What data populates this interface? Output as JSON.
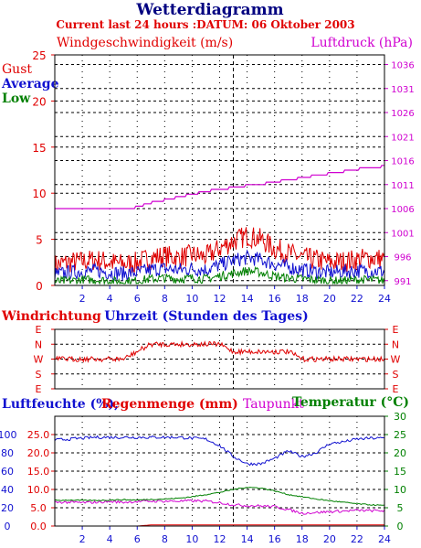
{
  "header": {
    "title": "Wetterdiagramm",
    "subtitle": "Current last 24 hours :DATUM: 06 Oktober 2003"
  },
  "colors": {
    "gust": "#e00000",
    "average": "#1010d0",
    "low": "#008000",
    "pressure": "#d000d0",
    "humidity": "#1010d0",
    "rain": "#e00000",
    "dewpoint": "#d000d0",
    "temperature": "#008000",
    "grid": "#000000",
    "now_marker": "#000000"
  },
  "chart_data": [
    {
      "type": "line",
      "name": "wind-pressure",
      "title_left": "Windgeschwindigkeit (m/s)",
      "title_right": "Luftdruck (hPa)",
      "legend": [
        "Gust",
        "Average",
        "Low"
      ],
      "x_label_ticks": [
        "2",
        "4",
        "6",
        "8",
        "10",
        "12",
        "14",
        "16",
        "18",
        "20",
        "22",
        "24"
      ],
      "y_left_ticks": [
        "0",
        "5",
        "10",
        "15",
        "20",
        "25"
      ],
      "y_right_ticks": [
        "991",
        "996",
        "1001",
        "1006",
        "1011",
        "1016",
        "1021",
        "1026",
        "1031",
        "1036"
      ],
      "xlim": [
        0,
        24
      ],
      "ylim_left": [
        0,
        25
      ],
      "ylim_right": [
        990,
        1038
      ],
      "grid": true,
      "now_hour": 13,
      "x": [
        0,
        1,
        2,
        3,
        4,
        5,
        6,
        7,
        8,
        9,
        10,
        11,
        12,
        13,
        14,
        15,
        16,
        17,
        18,
        19,
        20,
        21,
        22,
        23,
        24
      ],
      "series": [
        {
          "name": "Gust",
          "axis": "left",
          "values": [
            2.2,
            2.5,
            2.6,
            2.8,
            2.5,
            2.3,
            2.5,
            3.0,
            3.2,
            3.0,
            3.3,
            3.1,
            4.0,
            4.8,
            5.4,
            5.0,
            4.0,
            3.5,
            3.0,
            2.8,
            2.5,
            2.6,
            2.8,
            3.0,
            2.8
          ]
        },
        {
          "name": "Average",
          "axis": "left",
          "values": [
            1.2,
            1.4,
            1.5,
            1.6,
            1.4,
            1.3,
            1.4,
            1.7,
            1.8,
            1.7,
            1.8,
            1.7,
            2.2,
            2.7,
            3.0,
            2.8,
            2.3,
            2.0,
            1.7,
            1.5,
            1.4,
            1.5,
            1.6,
            1.6,
            1.5
          ]
        },
        {
          "name": "Low",
          "axis": "left",
          "values": [
            0.4,
            0.5,
            0.6,
            0.6,
            0.5,
            0.4,
            0.5,
            0.7,
            0.8,
            0.7,
            0.8,
            0.7,
            1.0,
            1.3,
            1.6,
            1.4,
            1.0,
            0.8,
            0.7,
            0.6,
            0.5,
            0.5,
            0.6,
            0.6,
            0.5
          ]
        },
        {
          "name": "Luftdruck",
          "axis": "right",
          "values": [
            1006,
            1006,
            1006,
            1006,
            1006,
            1006,
            1006.3,
            1007.2,
            1007.8,
            1008.4,
            1009,
            1009.6,
            1010,
            1010.4,
            1010.8,
            1011.1,
            1011.5,
            1012,
            1012.4,
            1012.9,
            1013.3,
            1013.7,
            1014.2,
            1014.6,
            1014.8
          ]
        }
      ]
    },
    {
      "type": "line",
      "name": "wind-direction",
      "title_left": "Windrichtung",
      "title_center": "Uhrzeit (Stunden des Tages)",
      "y_ticks": [
        "E",
        "N",
        "W",
        "S",
        "E"
      ],
      "xlim": [
        0,
        24
      ],
      "grid": true,
      "x": [
        0,
        1,
        2,
        3,
        4,
        5,
        6,
        7,
        8,
        9,
        10,
        11,
        12,
        13,
        14,
        15,
        16,
        17,
        18,
        19,
        20,
        21,
        22,
        23,
        24
      ],
      "series": [
        {
          "name": "Windrichtung",
          "values": [
            "W",
            "W",
            "W",
            "W",
            "W",
            "W",
            "NW",
            "N",
            "N",
            "N",
            "N",
            "N",
            "N",
            "NW",
            "NW",
            "NW",
            "NW",
            "NW",
            "W",
            "W",
            "W",
            "W",
            "W",
            "W",
            "W"
          ]
        }
      ]
    },
    {
      "type": "line",
      "name": "humidity-rain-dew-temp",
      "title_left_1": "Luftfeuchte (%),",
      "title_left_2": "Regenmenge (mm)",
      "title_center": "Taupunkt",
      "title_right": "Temperatur (°C)",
      "x_label_ticks": [
        "2",
        "4",
        "6",
        "8",
        "10",
        "12",
        "14",
        "16",
        "18",
        "20",
        "22",
        "24"
      ],
      "y_humidity_ticks": [
        "0",
        "20",
        "40",
        "60",
        "80",
        "100"
      ],
      "y_rain_ticks": [
        "0.0",
        "5.0",
        "10.0",
        "15.0",
        "20.0",
        "25.0"
      ],
      "y_temp_ticks": [
        "0",
        "5",
        "10",
        "15",
        "20",
        "25",
        "30"
      ],
      "xlim": [
        0,
        24
      ],
      "grid": true,
      "x": [
        0,
        1,
        2,
        3,
        4,
        5,
        6,
        7,
        8,
        9,
        10,
        11,
        12,
        13,
        14,
        15,
        16,
        17,
        18,
        19,
        20,
        21,
        22,
        23,
        24
      ],
      "series": [
        {
          "name": "Luftfeuchte",
          "unit": "%",
          "values": [
            94,
            95,
            96,
            97,
            97,
            97,
            97,
            97,
            97,
            97,
            96,
            95,
            88,
            76,
            68,
            68,
            74,
            82,
            76,
            80,
            90,
            92,
            95,
            96,
            96
          ]
        },
        {
          "name": "Regenmenge",
          "unit": "mm",
          "values": [
            0,
            0,
            0,
            0,
            0,
            0,
            0,
            0.3,
            0.3,
            0.3,
            0.3,
            0.3,
            0.3,
            0.3,
            0.3,
            0.3,
            0.3,
            0.3,
            0.3,
            0.3,
            0.3,
            0.3,
            0.3,
            0.3,
            0.3
          ]
        },
        {
          "name": "Taupunkt",
          "unit": "°C",
          "values": [
            6.5,
            6.5,
            6.4,
            6.5,
            6.7,
            6.5,
            6.7,
            6.8,
            6.8,
            6.8,
            6.9,
            6.8,
            6.4,
            5.8,
            5.6,
            5.5,
            5.3,
            4.5,
            3.5,
            3.7,
            3.9,
            4.1,
            4.3,
            4.2,
            4.2
          ]
        },
        {
          "name": "Temperatur",
          "unit": "°C",
          "values": [
            7.0,
            7.1,
            7.0,
            7.0,
            7.1,
            7.2,
            7.1,
            7.3,
            7.4,
            7.6,
            8.0,
            8.6,
            9.2,
            10.0,
            10.6,
            10.4,
            9.6,
            8.6,
            8.0,
            7.4,
            6.9,
            6.5,
            6.1,
            5.8,
            5.6
          ]
        }
      ]
    }
  ]
}
